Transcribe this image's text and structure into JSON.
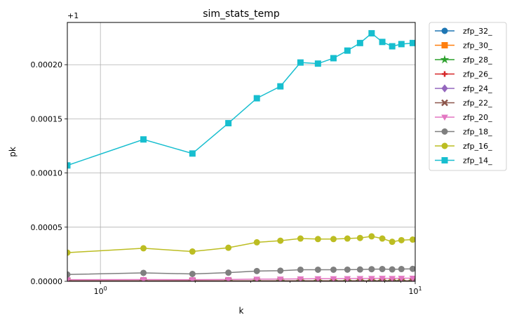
{
  "chart_data": {
    "type": "line",
    "title": "sim_stats_temp",
    "xlabel": "k",
    "ylabel": "pk",
    "xscale": "log",
    "xlim": [
      0.785,
      10.0
    ],
    "ylim": [
      0.0,
      0.000239
    ],
    "y_offset_label": "+1",
    "grid": true,
    "legend_position": "outside-right",
    "x_ticks": [
      {
        "value": 1,
        "label": "10",
        "exp": "0"
      },
      {
        "value": 10,
        "label": "10",
        "exp": "1"
      }
    ],
    "y_ticks": [
      {
        "value": 0.0,
        "label": "0.00000"
      },
      {
        "value": 5e-05,
        "label": "0.00005"
      },
      {
        "value": 0.0001,
        "label": "0.00010"
      },
      {
        "value": 0.00015,
        "label": "0.00015"
      },
      {
        "value": 0.0002,
        "label": "0.00020"
      }
    ],
    "x": [
      0.785,
      1.37,
      1.96,
      2.55,
      3.14,
      3.73,
      4.32,
      4.91,
      5.5,
      6.09,
      6.68,
      7.27,
      7.86,
      8.45,
      9.04,
      9.82
    ],
    "series": [
      {
        "name": "zfp_32_",
        "color": "#1f77b4",
        "marker": "circle",
        "values": [
          0,
          0,
          0,
          0,
          0,
          0,
          0,
          0,
          0,
          0,
          0,
          0,
          0,
          0,
          0,
          0
        ]
      },
      {
        "name": "zfp_30_",
        "color": "#ff7f0e",
        "marker": "square",
        "values": [
          0,
          0,
          0,
          0,
          0,
          0,
          0,
          0,
          0,
          0,
          0,
          0,
          0,
          0,
          0,
          0
        ]
      },
      {
        "name": "zfp_28_",
        "color": "#2ca02c",
        "marker": "star",
        "values": [
          0,
          0,
          0,
          0,
          0,
          0,
          0,
          0,
          0,
          0,
          0,
          0,
          0,
          0,
          0,
          0
        ]
      },
      {
        "name": "zfp_26_",
        "color": "#d62728",
        "marker": "plus",
        "values": [
          1e-07,
          1e-07,
          1e-07,
          1e-07,
          1e-07,
          1e-07,
          1e-07,
          1e-07,
          1e-07,
          1e-07,
          1e-07,
          1e-07,
          1e-07,
          1e-07,
          1e-07,
          1e-07
        ]
      },
      {
        "name": "zfp_24_",
        "color": "#9467bd",
        "marker": "diamond",
        "values": [
          2e-07,
          2e-07,
          2e-07,
          2e-07,
          2e-07,
          2e-07,
          2e-07,
          2e-07,
          2e-07,
          2e-07,
          2e-07,
          2e-07,
          2e-07,
          2e-07,
          2e-07,
          2e-07
        ]
      },
      {
        "name": "zfp_22_",
        "color": "#8c564b",
        "marker": "x",
        "values": [
          5e-07,
          5e-07,
          5e-07,
          5e-07,
          5e-07,
          5e-07,
          5e-07,
          5e-07,
          5e-07,
          5e-07,
          5e-07,
          5e-07,
          5e-07,
          5e-07,
          5e-07,
          5e-07
        ]
      },
      {
        "name": "zfp_20_",
        "color": "#e377c2",
        "marker": "triangle-down",
        "values": [
          1.5e-06,
          1.6e-06,
          1.5e-06,
          1.7e-06,
          2e-06,
          2.1e-06,
          2.3e-06,
          2.4e-06,
          2.4e-06,
          2.5e-06,
          2.6e-06,
          2.7e-06,
          2.8e-06,
          2.7e-06,
          2.8e-06,
          2.9e-06
        ]
      },
      {
        "name": "zfp_18_",
        "color": "#7f7f7f",
        "marker": "hexagon",
        "values": [
          6.3e-06,
          7.8e-06,
          6.8e-06,
          8e-06,
          9.5e-06,
          9.8e-06,
          1.07e-05,
          1.07e-05,
          1.07e-05,
          1.08e-05,
          1.09e-05,
          1.12e-05,
          1.13e-05,
          1.1e-05,
          1.13e-05,
          1.15e-05
        ]
      },
      {
        "name": "zfp_16_",
        "color": "#bcbd22",
        "marker": "octagon",
        "values": [
          2.65e-05,
          3.05e-05,
          2.75e-05,
          3.1e-05,
          3.6e-05,
          3.75e-05,
          3.95e-05,
          3.9e-05,
          3.9e-05,
          3.95e-05,
          4e-05,
          4.15e-05,
          3.95e-05,
          3.65e-05,
          3.8e-05,
          3.85e-05
        ]
      },
      {
        "name": "zfp_14_",
        "color": "#17becf",
        "marker": "square",
        "values": [
          0.000107,
          0.000131,
          0.000118,
          0.000146,
          0.000169,
          0.00018,
          0.000202,
          0.000201,
          0.000206,
          0.000213,
          0.00022,
          0.000229,
          0.000221,
          0.000217,
          0.000219,
          0.00022
        ]
      }
    ]
  }
}
